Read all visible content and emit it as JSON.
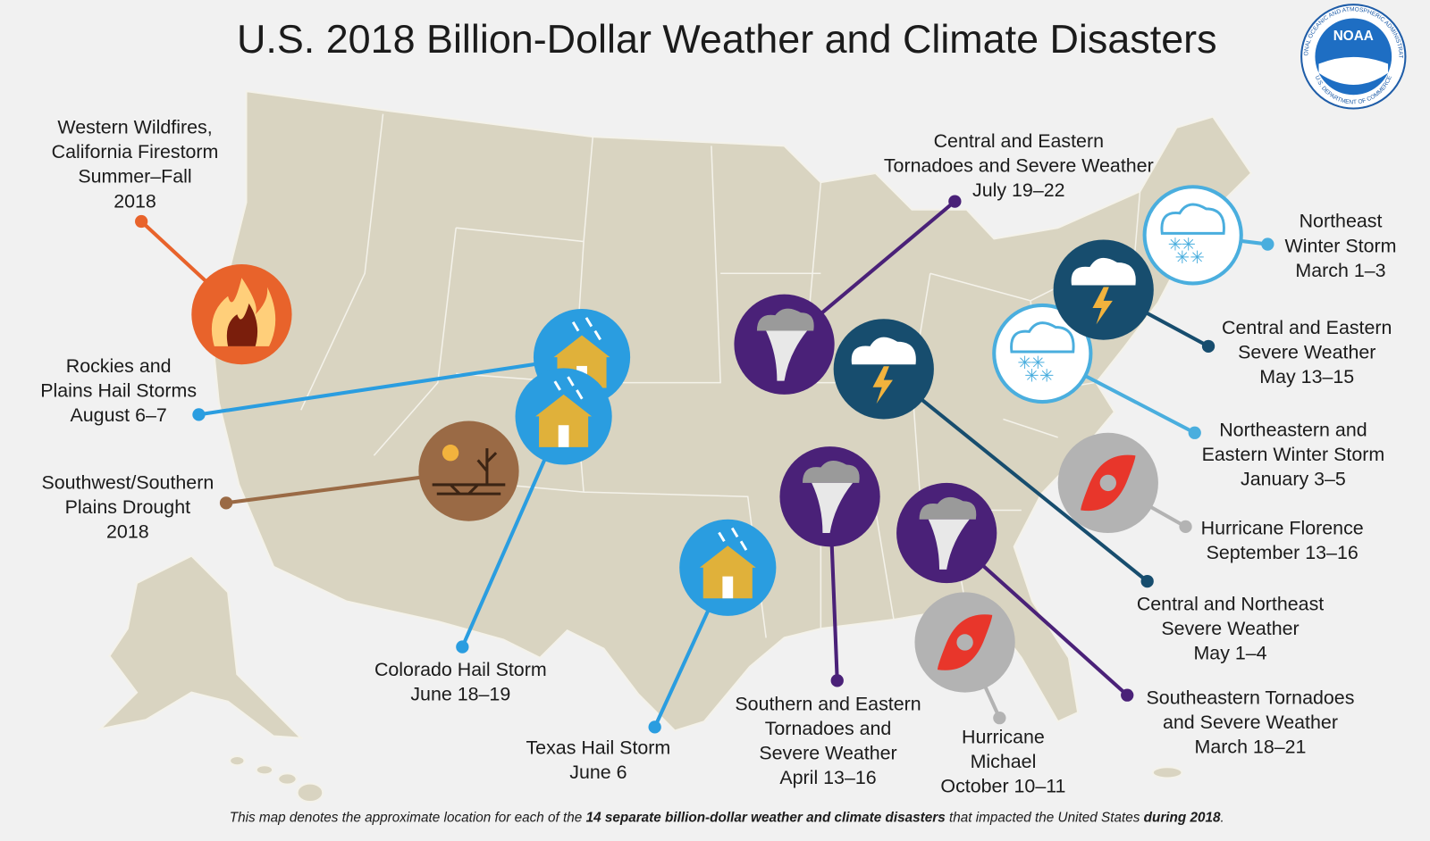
{
  "title": "U.S. 2018 Billion-Dollar Weather and Climate Disasters",
  "logo": {
    "text": "NOAA",
    "ring_top": "NATIONAL OCEANIC AND ATMOSPHERIC ADMINISTRATION",
    "ring_bottom": "U.S. DEPARTMENT OF COMMERCE"
  },
  "events": [
    {
      "lines": [
        "Western Wildfires,",
        "California Firestorm",
        "Summer–Fall",
        "2018"
      ]
    },
    {
      "lines": [
        "Rockies and",
        "Plains Hail Storms",
        "August 6–7"
      ]
    },
    {
      "lines": [
        "Colorado Hail Storm",
        "June 18–19"
      ]
    },
    {
      "lines": [
        "Southwest/Southern",
        "Plains Drought",
        "2018"
      ]
    },
    {
      "lines": [
        "Texas Hail Storm",
        "June 6"
      ]
    },
    {
      "lines": [
        "Central and Eastern",
        "Tornadoes and Severe Weather",
        "July 19–22"
      ]
    },
    {
      "lines": [
        "Southern and Eastern",
        "Tornadoes and",
        "Severe Weather",
        "April 13–16"
      ]
    },
    {
      "lines": [
        "Southeastern Tornadoes",
        "and Severe Weather",
        "March 18–21"
      ]
    },
    {
      "lines": [
        "Hurricane",
        "Michael",
        "October 10–11"
      ]
    },
    {
      "lines": [
        "Hurricane Florence",
        "September 13–16"
      ]
    },
    {
      "lines": [
        "Central and Northeast",
        "Severe Weather",
        "May 1–4"
      ]
    },
    {
      "lines": [
        "Northeastern and",
        "Eastern Winter Storm",
        "January 3–5"
      ]
    },
    {
      "lines": [
        "Central and Eastern",
        "Severe Weather",
        "May 13–15"
      ]
    },
    {
      "lines": [
        "Northeast",
        "Winter Storm",
        "March 1–3"
      ]
    }
  ],
  "footer": {
    "text_1": "This map denotes the approximate location for each of the ",
    "bold_1": "14 separate billion-dollar weather and climate disasters",
    "text_2": " that impacted the United States ",
    "bold_2": "during 2018",
    "text_3": "."
  }
}
